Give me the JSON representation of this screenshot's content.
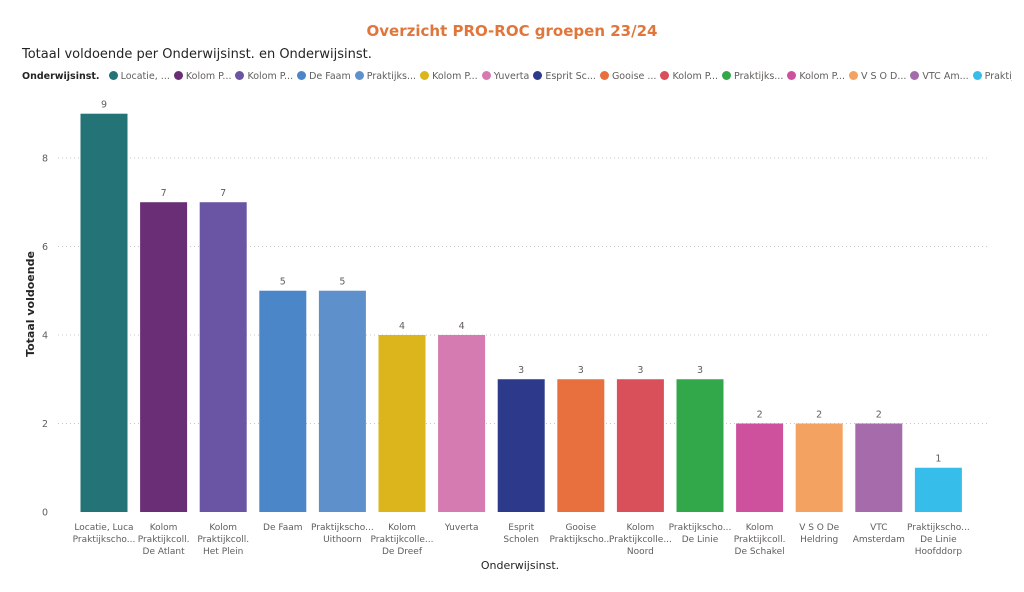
{
  "page": {
    "title": "Overzicht PRO-ROC groepen 23/24",
    "title_color": "#e0763b"
  },
  "chart_data": {
    "type": "bar",
    "title": "Totaal voldoende per Onderwijsinst. en Onderwijsinst.",
    "xlabel": "Onderwijsinst.",
    "ylabel": "Totaal voldoende",
    "ylim": [
      0,
      9.4
    ],
    "yticks": [
      "0",
      "2",
      "4",
      "6",
      "8"
    ],
    "grid": true,
    "legend": {
      "title": "Onderwijsinst.",
      "placement": "top-left",
      "entries": [
        "Locatie, ...",
        "Kolom P...",
        "Kolom P...",
        "De Faam",
        "Praktijks...",
        "Kolom P...",
        "Yuverta",
        "Esprit Sc...",
        "Gooise ...",
        "Kolom P...",
        "Praktijks...",
        "Kolom P...",
        "V S O  D...",
        "VTC Am...",
        "Praktijks..."
      ]
    },
    "categories": [
      [
        "Locatie, Luca",
        "Praktijkscho..."
      ],
      [
        "Kolom",
        "Praktijkcoll.",
        "De Atlant"
      ],
      [
        "Kolom",
        "Praktijkcoll.",
        "Het Plein"
      ],
      [
        "De Faam"
      ],
      [
        "Praktijkscho...",
        "Uithoorn"
      ],
      [
        "Kolom",
        "Praktijkcolle...",
        "De Dreef"
      ],
      [
        "Yuverta"
      ],
      [
        "Esprit",
        "Scholen"
      ],
      [
        "Gooise",
        "Praktijkscho..."
      ],
      [
        "Kolom",
        "Praktijkcolle...",
        "Noord"
      ],
      [
        "Praktijkscho...",
        "De Linie"
      ],
      [
        "Kolom",
        "Praktijkcoll.",
        "De Schakel"
      ],
      [
        "V S O De",
        "Heldring"
      ],
      [
        "VTC",
        "Amsterdam"
      ],
      [
        "Praktijkscho...",
        "De Linie",
        "Hoofddorp"
      ]
    ],
    "values": [
      9,
      7,
      7,
      5,
      5,
      4,
      4,
      3,
      3,
      3,
      3,
      2,
      2,
      2,
      1
    ],
    "data_labels": [
      "9",
      "7",
      "7",
      "5",
      "5",
      "4",
      "4",
      "3",
      "3",
      "3",
      "3",
      "2",
      "2",
      "2",
      "1"
    ],
    "colors": [
      "#237377",
      "#6a2e76",
      "#6a55a4",
      "#4a86c8",
      "#5e91cc",
      "#dcb51d",
      "#d67bb1",
      "#2d3a8c",
      "#e8703e",
      "#d94f5a",
      "#33a84a",
      "#cd519d",
      "#f4a262",
      "#a66bab",
      "#37bde9"
    ]
  }
}
